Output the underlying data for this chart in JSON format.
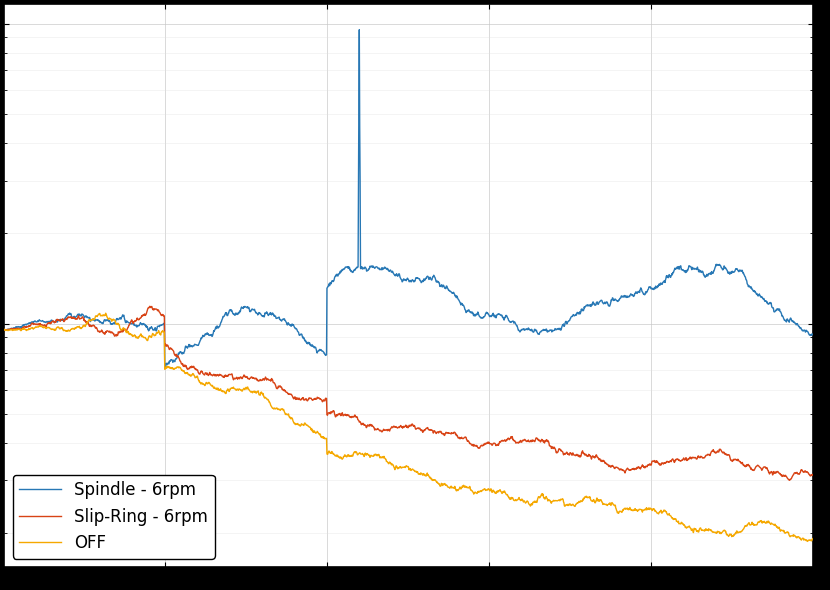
{
  "line1_label": "Spindle - 6rpm",
  "line2_label": "Slip-Ring - 6rpm",
  "line3_label": "OFF",
  "line1_color": "#2878b5",
  "line2_color": "#d84315",
  "line3_color": "#f5a800",
  "line_width": 1.0,
  "background_color": "#ffffff",
  "fig_background": "#000000",
  "grid_color": "#c8c8c8",
  "grid_minor_color": "#e0e0e0",
  "legend_loc": "lower left",
  "legend_fontsize": 12,
  "tick_labelsize": 10,
  "seed": 12345
}
